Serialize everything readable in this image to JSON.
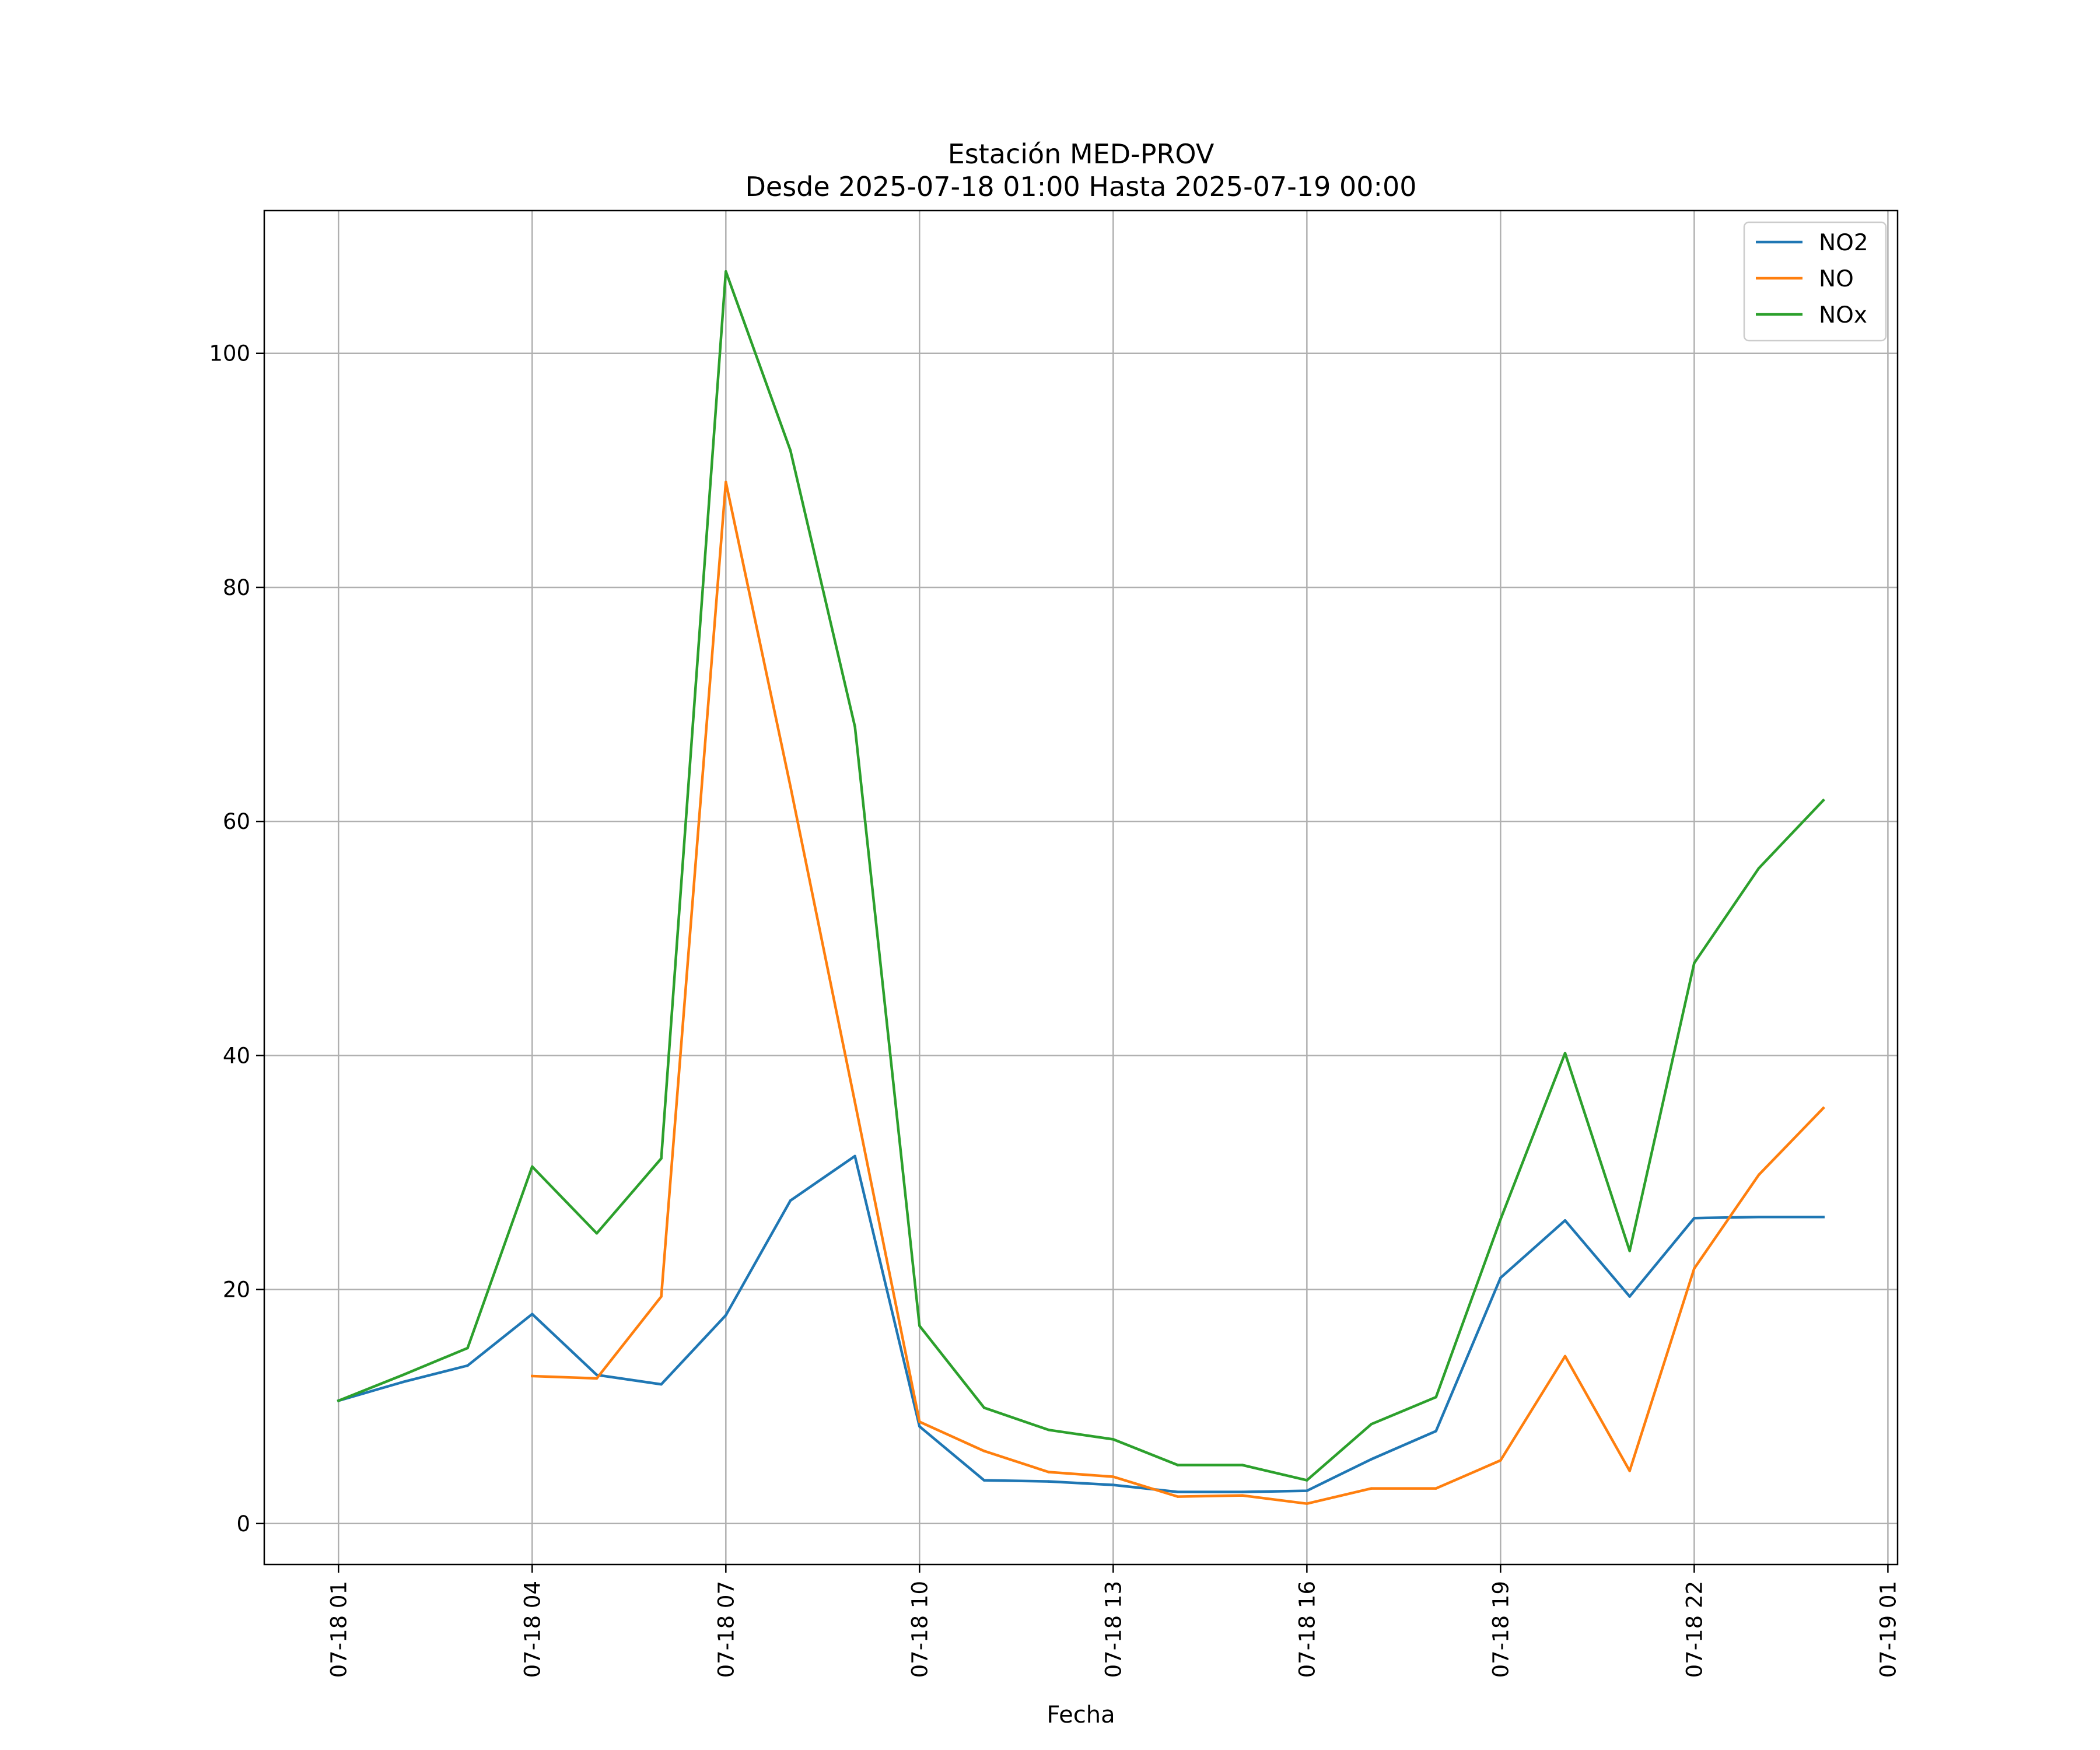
{
  "chart_data": {
    "type": "line",
    "title": "Estación MED-PROV",
    "subtitle": "Desde 2025-07-18 01:00 Hasta 2025-07-19 00:00",
    "xlabel": "Fecha",
    "ylabel": "",
    "x": [
      "2025-07-18 01:00",
      "2025-07-18 02:00",
      "2025-07-18 03:00",
      "2025-07-18 04:00",
      "2025-07-18 05:00",
      "2025-07-18 06:00",
      "2025-07-18 07:00",
      "2025-07-18 08:00",
      "2025-07-18 09:00",
      "2025-07-18 10:00",
      "2025-07-18 11:00",
      "2025-07-18 12:00",
      "2025-07-18 13:00",
      "2025-07-18 14:00",
      "2025-07-18 15:00",
      "2025-07-18 16:00",
      "2025-07-18 17:00",
      "2025-07-18 18:00",
      "2025-07-18 19:00",
      "2025-07-18 20:00",
      "2025-07-18 21:00",
      "2025-07-18 22:00",
      "2025-07-18 23:00",
      "2025-07-19 00:00"
    ],
    "x_ticks": [
      "07-18 01",
      "07-18 04",
      "07-18 07",
      "07-18 10",
      "07-18 13",
      "07-18 16",
      "07-18 19",
      "07-18 22",
      "07-19 01"
    ],
    "y_ticks": [
      0,
      20,
      40,
      60,
      80,
      100
    ],
    "ylim": [
      -3.5,
      112.2
    ],
    "grid": true,
    "legend_position": "top-right",
    "series": [
      {
        "name": "NO2",
        "color": "#1f77b4",
        "values": [
          10.5,
          12.1,
          13.5,
          17.9,
          12.7,
          11.9,
          17.8,
          27.6,
          31.4,
          8.3,
          3.7,
          3.6,
          3.3,
          2.7,
          2.7,
          2.8,
          5.5,
          7.9,
          21.0,
          25.9,
          19.4,
          26.1,
          26.2,
          26.2
        ]
      },
      {
        "name": "NO",
        "color": "#ff7f0e",
        "values": [
          null,
          null,
          null,
          12.6,
          12.4,
          19.4,
          89.0,
          63.0,
          36.0,
          8.7,
          6.2,
          4.4,
          4.0,
          2.3,
          2.4,
          1.7,
          3.0,
          3.0,
          5.4,
          14.3,
          4.5,
          21.8,
          29.8,
          35.5
        ]
      },
      {
        "name": "NOx",
        "color": "#2ca02c",
        "values": [
          10.5,
          12.7,
          15.0,
          30.5,
          24.8,
          31.2,
          107.0,
          91.7,
          68.1,
          16.9,
          9.9,
          8.0,
          7.2,
          5.0,
          5.0,
          3.7,
          8.5,
          10.8,
          26.0,
          40.2,
          23.3,
          47.9,
          56.0,
          61.8
        ]
      }
    ]
  }
}
